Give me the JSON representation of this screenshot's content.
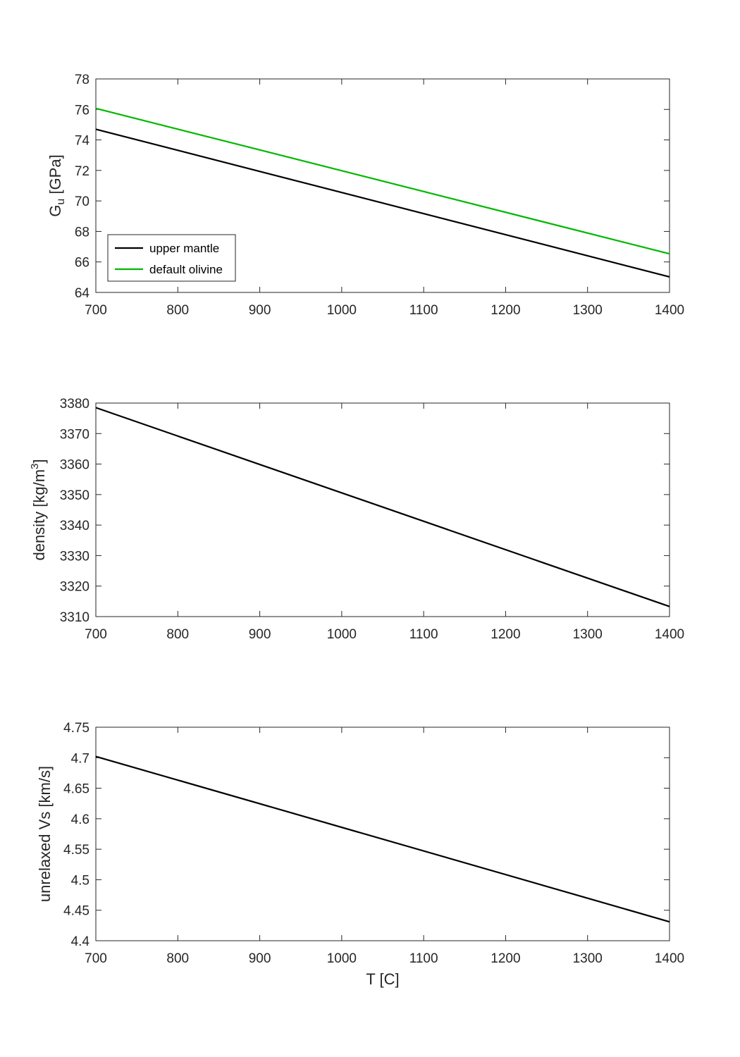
{
  "chart_data": [
    {
      "type": "line",
      "title": "",
      "xlabel": "",
      "ylabel": {
        "main": "G",
        "sub": "u",
        "unit": " [GPa]"
      },
      "xlim": [
        700,
        1400
      ],
      "ylim": [
        64,
        78
      ],
      "xticks": [
        700,
        800,
        900,
        1000,
        1100,
        1200,
        1300,
        1400
      ],
      "yticks": [
        64,
        66,
        68,
        70,
        72,
        74,
        76,
        78
      ],
      "xtick_labels": [
        "700",
        "800",
        "900",
        "1000",
        "1100",
        "1200",
        "1300",
        "1400"
      ],
      "ytick_labels": [
        "64",
        "66",
        "68",
        "70",
        "72",
        "74",
        "76",
        "78"
      ],
      "legend_position": "bottom-left",
      "series": [
        {
          "name": "upper mantle",
          "color": "#000000",
          "x": [
            700,
            1400
          ],
          "y": [
            74.7,
            65.02
          ]
        },
        {
          "name": "default olivine",
          "color": "#00b800",
          "x": [
            700,
            1400
          ],
          "y": [
            76.07,
            66.53
          ]
        }
      ]
    },
    {
      "type": "line",
      "title": "",
      "xlabel": "",
      "ylabel": {
        "main": "density [kg/m",
        "sup": "3",
        "unit": "]"
      },
      "xlim": [
        700,
        1400
      ],
      "ylim": [
        3310,
        3380
      ],
      "xticks": [
        700,
        800,
        900,
        1000,
        1100,
        1200,
        1300,
        1400
      ],
      "yticks": [
        3310,
        3320,
        3330,
        3340,
        3350,
        3360,
        3370,
        3380
      ],
      "xtick_labels": [
        "700",
        "800",
        "900",
        "1000",
        "1100",
        "1200",
        "1300",
        "1400"
      ],
      "ytick_labels": [
        "3310",
        "3320",
        "3330",
        "3340",
        "3350",
        "3360",
        "3370",
        "3380"
      ],
      "series": [
        {
          "name": "density",
          "color": "#000000",
          "x": [
            700,
            1400
          ],
          "y": [
            3378.5,
            3313.3
          ]
        }
      ]
    },
    {
      "type": "line",
      "title": "",
      "xlabel": "T [C]",
      "ylabel": {
        "main": "unrelaxed Vs [km/s]"
      },
      "xlim": [
        700,
        1400
      ],
      "ylim": [
        4.4,
        4.75
      ],
      "xticks": [
        700,
        800,
        900,
        1000,
        1100,
        1200,
        1300,
        1400
      ],
      "yticks": [
        4.4,
        4.45,
        4.5,
        4.55,
        4.6,
        4.65,
        4.7,
        4.75
      ],
      "xtick_labels": [
        "700",
        "800",
        "900",
        "1000",
        "1100",
        "1200",
        "1300",
        "1400"
      ],
      "ytick_labels": [
        "4.4",
        "4.45",
        "4.5",
        "4.55",
        "4.6",
        "4.65",
        "4.7",
        "4.75"
      ],
      "series": [
        {
          "name": "unrelaxed Vs",
          "color": "#000000",
          "x": [
            700,
            1400
          ],
          "y": [
            4.702,
            4.431
          ]
        }
      ]
    }
  ]
}
